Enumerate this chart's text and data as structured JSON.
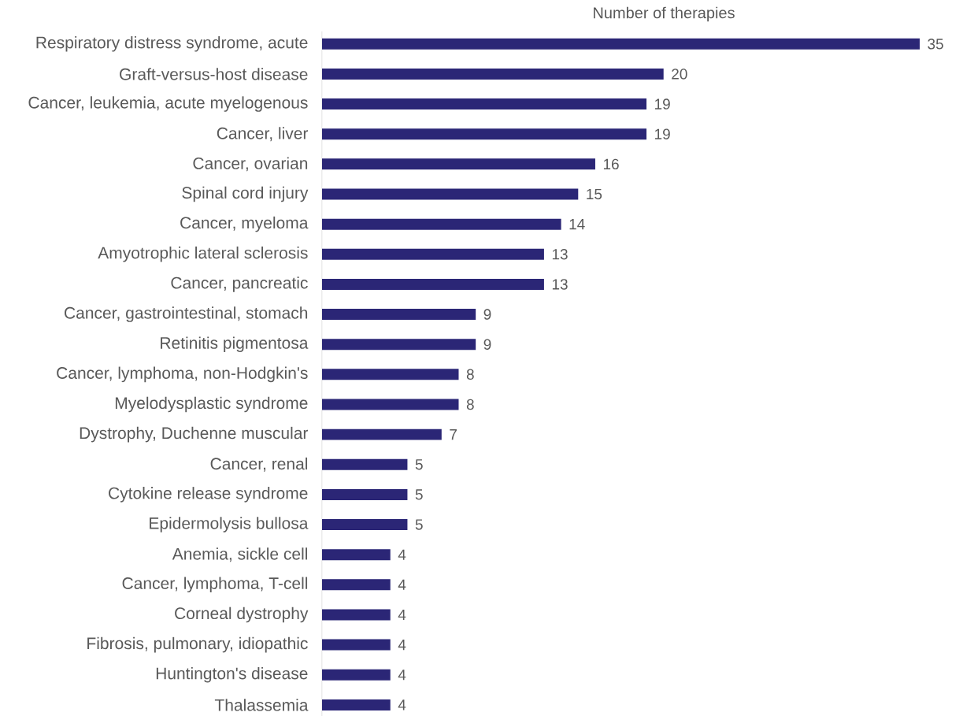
{
  "chart_data": {
    "type": "bar",
    "orientation": "horizontal",
    "title": "Number of therapies",
    "categories": [
      "Respiratory distress syndrome, acute",
      "Graft-versus-host disease",
      "Cancer, leukemia, acute myelogenous",
      "Cancer, liver",
      "Cancer, ovarian",
      "Spinal cord injury",
      "Cancer, myeloma",
      "Amyotrophic lateral sclerosis",
      "Cancer, pancreatic",
      "Cancer, gastrointestinal, stomach",
      "Retinitis pigmentosa",
      "Cancer, lymphoma, non-Hodgkin's",
      "Myelodysplastic syndrome",
      "Dystrophy, Duchenne muscular",
      "Cancer, renal",
      "Cytokine release syndrome",
      "Epidermolysis bullosa",
      "Anemia, sickle cell",
      "Cancer, lymphoma, T-cell",
      "Corneal dystrophy",
      "Fibrosis, pulmonary, idiopathic",
      "Huntington's disease",
      "Thalassemia"
    ],
    "values": [
      35,
      20,
      19,
      19,
      16,
      15,
      14,
      13,
      13,
      9,
      9,
      8,
      8,
      7,
      5,
      5,
      5,
      4,
      4,
      4,
      4,
      4,
      4
    ],
    "color": "#2b2676",
    "data_labels": true
  }
}
